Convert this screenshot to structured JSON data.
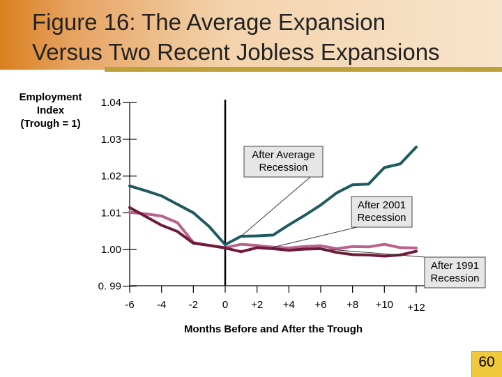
{
  "slide": {
    "title_line1": "Figure 16:  The Average Expansion",
    "title_line2": "Versus Two Recent Jobless Expansions",
    "page_number": "60"
  },
  "chart_data": {
    "type": "line",
    "ylabel_lines": [
      "Employment",
      "Index",
      "(Trough = 1)"
    ],
    "xlabel": "Months Before and After the Trough",
    "x": [
      -6,
      -5,
      -4,
      -3,
      -2,
      -1,
      0,
      1,
      2,
      3,
      4,
      5,
      6,
      7,
      8,
      9,
      10,
      11,
      12
    ],
    "xticks": [
      -6,
      -4,
      -2,
      0,
      2,
      4,
      6,
      8,
      10,
      12
    ],
    "xtick_labels": [
      "-6",
      "-4",
      "-2",
      "0",
      "+2",
      "+4",
      "+6",
      "+8",
      "+10",
      "+12"
    ],
    "xlim": [
      -7,
      12.5
    ],
    "yticks": [
      0.99,
      1.0,
      1.01,
      1.02,
      1.03,
      1.04
    ],
    "ytick_labels": [
      "0. 99",
      "1.00",
      "1.01",
      "1.02",
      "1.03",
      "1.04"
    ],
    "ylim": [
      0.99,
      1.04
    ],
    "vline_x": 0,
    "grid": false,
    "series": [
      {
        "name": "After Average Recession",
        "color": "#1f5a5e",
        "values": [
          1.0173,
          1.016,
          1.0146,
          1.0123,
          1.01,
          1.0062,
          1.0013,
          1.0036,
          1.0037,
          1.0039,
          1.0067,
          1.0093,
          1.0121,
          1.0154,
          1.0176,
          1.0178,
          1.0223,
          1.0233,
          1.0279
        ]
      },
      {
        "name": "After 2001 Recession",
        "color": "#b8628e",
        "values": [
          1.0101,
          1.0097,
          1.0091,
          1.0073,
          1.0019,
          1.0011,
          1.0005,
          1.0014,
          1.0011,
          1.0006,
          1.0004,
          1.0008,
          1.001,
          1.0002,
          1.0008,
          1.0007,
          1.0014,
          1.0005,
          1.0004
        ]
      },
      {
        "name": "After 1991 Recession",
        "color": "#6e1a3c",
        "values": [
          1.0114,
          1.009,
          1.0066,
          1.0049,
          1.0017,
          1.0011,
          1.0004,
          0.9994,
          1.0005,
          1.0002,
          0.9998,
          1.0001,
          1.0002,
          0.9992,
          0.9986,
          0.9985,
          0.9982,
          0.9985,
          0.9995
        ]
      }
    ],
    "annotations": [
      {
        "series_index": 0,
        "lines": [
          "After Average",
          "Recession"
        ]
      },
      {
        "series_index": 1,
        "lines": [
          "After 2001",
          "Recession"
        ]
      },
      {
        "series_index": 2,
        "lines": [
          "After 1991",
          "Recession"
        ]
      }
    ]
  }
}
